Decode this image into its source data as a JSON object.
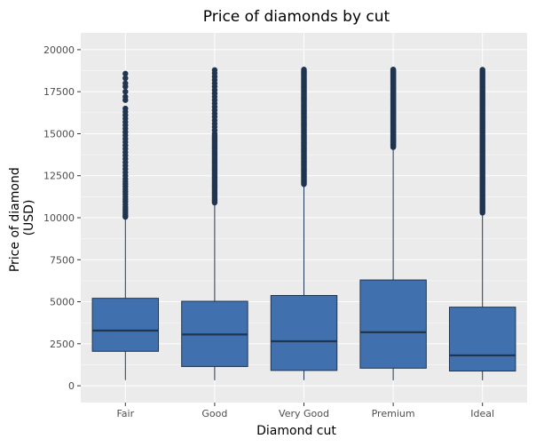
{
  "chart_data": {
    "type": "boxplot",
    "title": "Price of diamonds by cut",
    "xlabel": "Diamond cut",
    "ylabel_lines": [
      "Price of diamond",
      "(USD)"
    ],
    "categories": [
      "Fair",
      "Good",
      "Very Good",
      "Premium",
      "Ideal"
    ],
    "ylim": [
      -1000,
      21000
    ],
    "yticks": [
      0,
      2500,
      5000,
      7500,
      10000,
      12500,
      15000,
      17500,
      20000
    ],
    "ytick_labels": [
      "0",
      "2500",
      "5000",
      "7500",
      "10000",
      "12500",
      "15000",
      "17500",
      "20000"
    ],
    "grid": true,
    "boxes": [
      {
        "category": "Fair",
        "min": 337,
        "q1": 2050,
        "median": 3282,
        "q3": 5206,
        "whisker_high": 9900,
        "outliers": [
          10050,
          10150,
          10280,
          10400,
          10520,
          10650,
          10800,
          10950,
          11100,
          11250,
          11400,
          11550,
          11700,
          11850,
          12000,
          12150,
          12300,
          12500,
          12700,
          12900,
          13100,
          13300,
          13500,
          13700,
          13900,
          14100,
          14300,
          14500,
          14700,
          14900,
          15100,
          15300,
          15500,
          15700,
          15900,
          16100,
          16300,
          16500,
          17000,
          17200,
          17500,
          17800,
          18000,
          18300,
          18574
        ]
      },
      {
        "category": "Good",
        "min": 327,
        "q1": 1145,
        "median": 3051,
        "q3": 5028,
        "whisker_high": 10800,
        "outliers": [
          10900,
          11000,
          11100,
          11200,
          11300,
          11400,
          11500,
          11600,
          11700,
          11800,
          11900,
          12000,
          12100,
          12200,
          12300,
          12400,
          12500,
          12600,
          12700,
          12800,
          12900,
          13000,
          13100,
          13200,
          13300,
          13400,
          13500,
          13600,
          13700,
          13800,
          13900,
          14000,
          14100,
          14200,
          14300,
          14400,
          14500,
          14600,
          14700,
          14800,
          14900,
          15000,
          15200,
          15400,
          15600,
          15800,
          16000,
          16200,
          16400,
          16600,
          16800,
          17000,
          17200,
          17400,
          17600,
          17800,
          18000,
          18200,
          18400,
          18600,
          18788
        ]
      },
      {
        "category": "Very Good",
        "min": 336,
        "q1": 912,
        "median": 2648,
        "q3": 5373,
        "whisker_high": 12000,
        "outliers_dense_range": [
          12000,
          18818
        ]
      },
      {
        "category": "Premium",
        "min": 326,
        "q1": 1046,
        "median": 3185,
        "q3": 6296,
        "whisker_high": 14200,
        "outliers_dense_range": [
          14200,
          18823
        ]
      },
      {
        "category": "Ideal",
        "min": 326,
        "q1": 878,
        "median": 1810,
        "q3": 4678,
        "whisker_high": 10300,
        "outliers_dense_range": [
          10300,
          18806
        ]
      }
    ]
  },
  "colors": {
    "panel_bg": "#ebebeb",
    "grid_major": "#ffffff",
    "box_fill": "#4170ae",
    "box_edge": "#1f3550",
    "outlier": "#1f3550"
  }
}
